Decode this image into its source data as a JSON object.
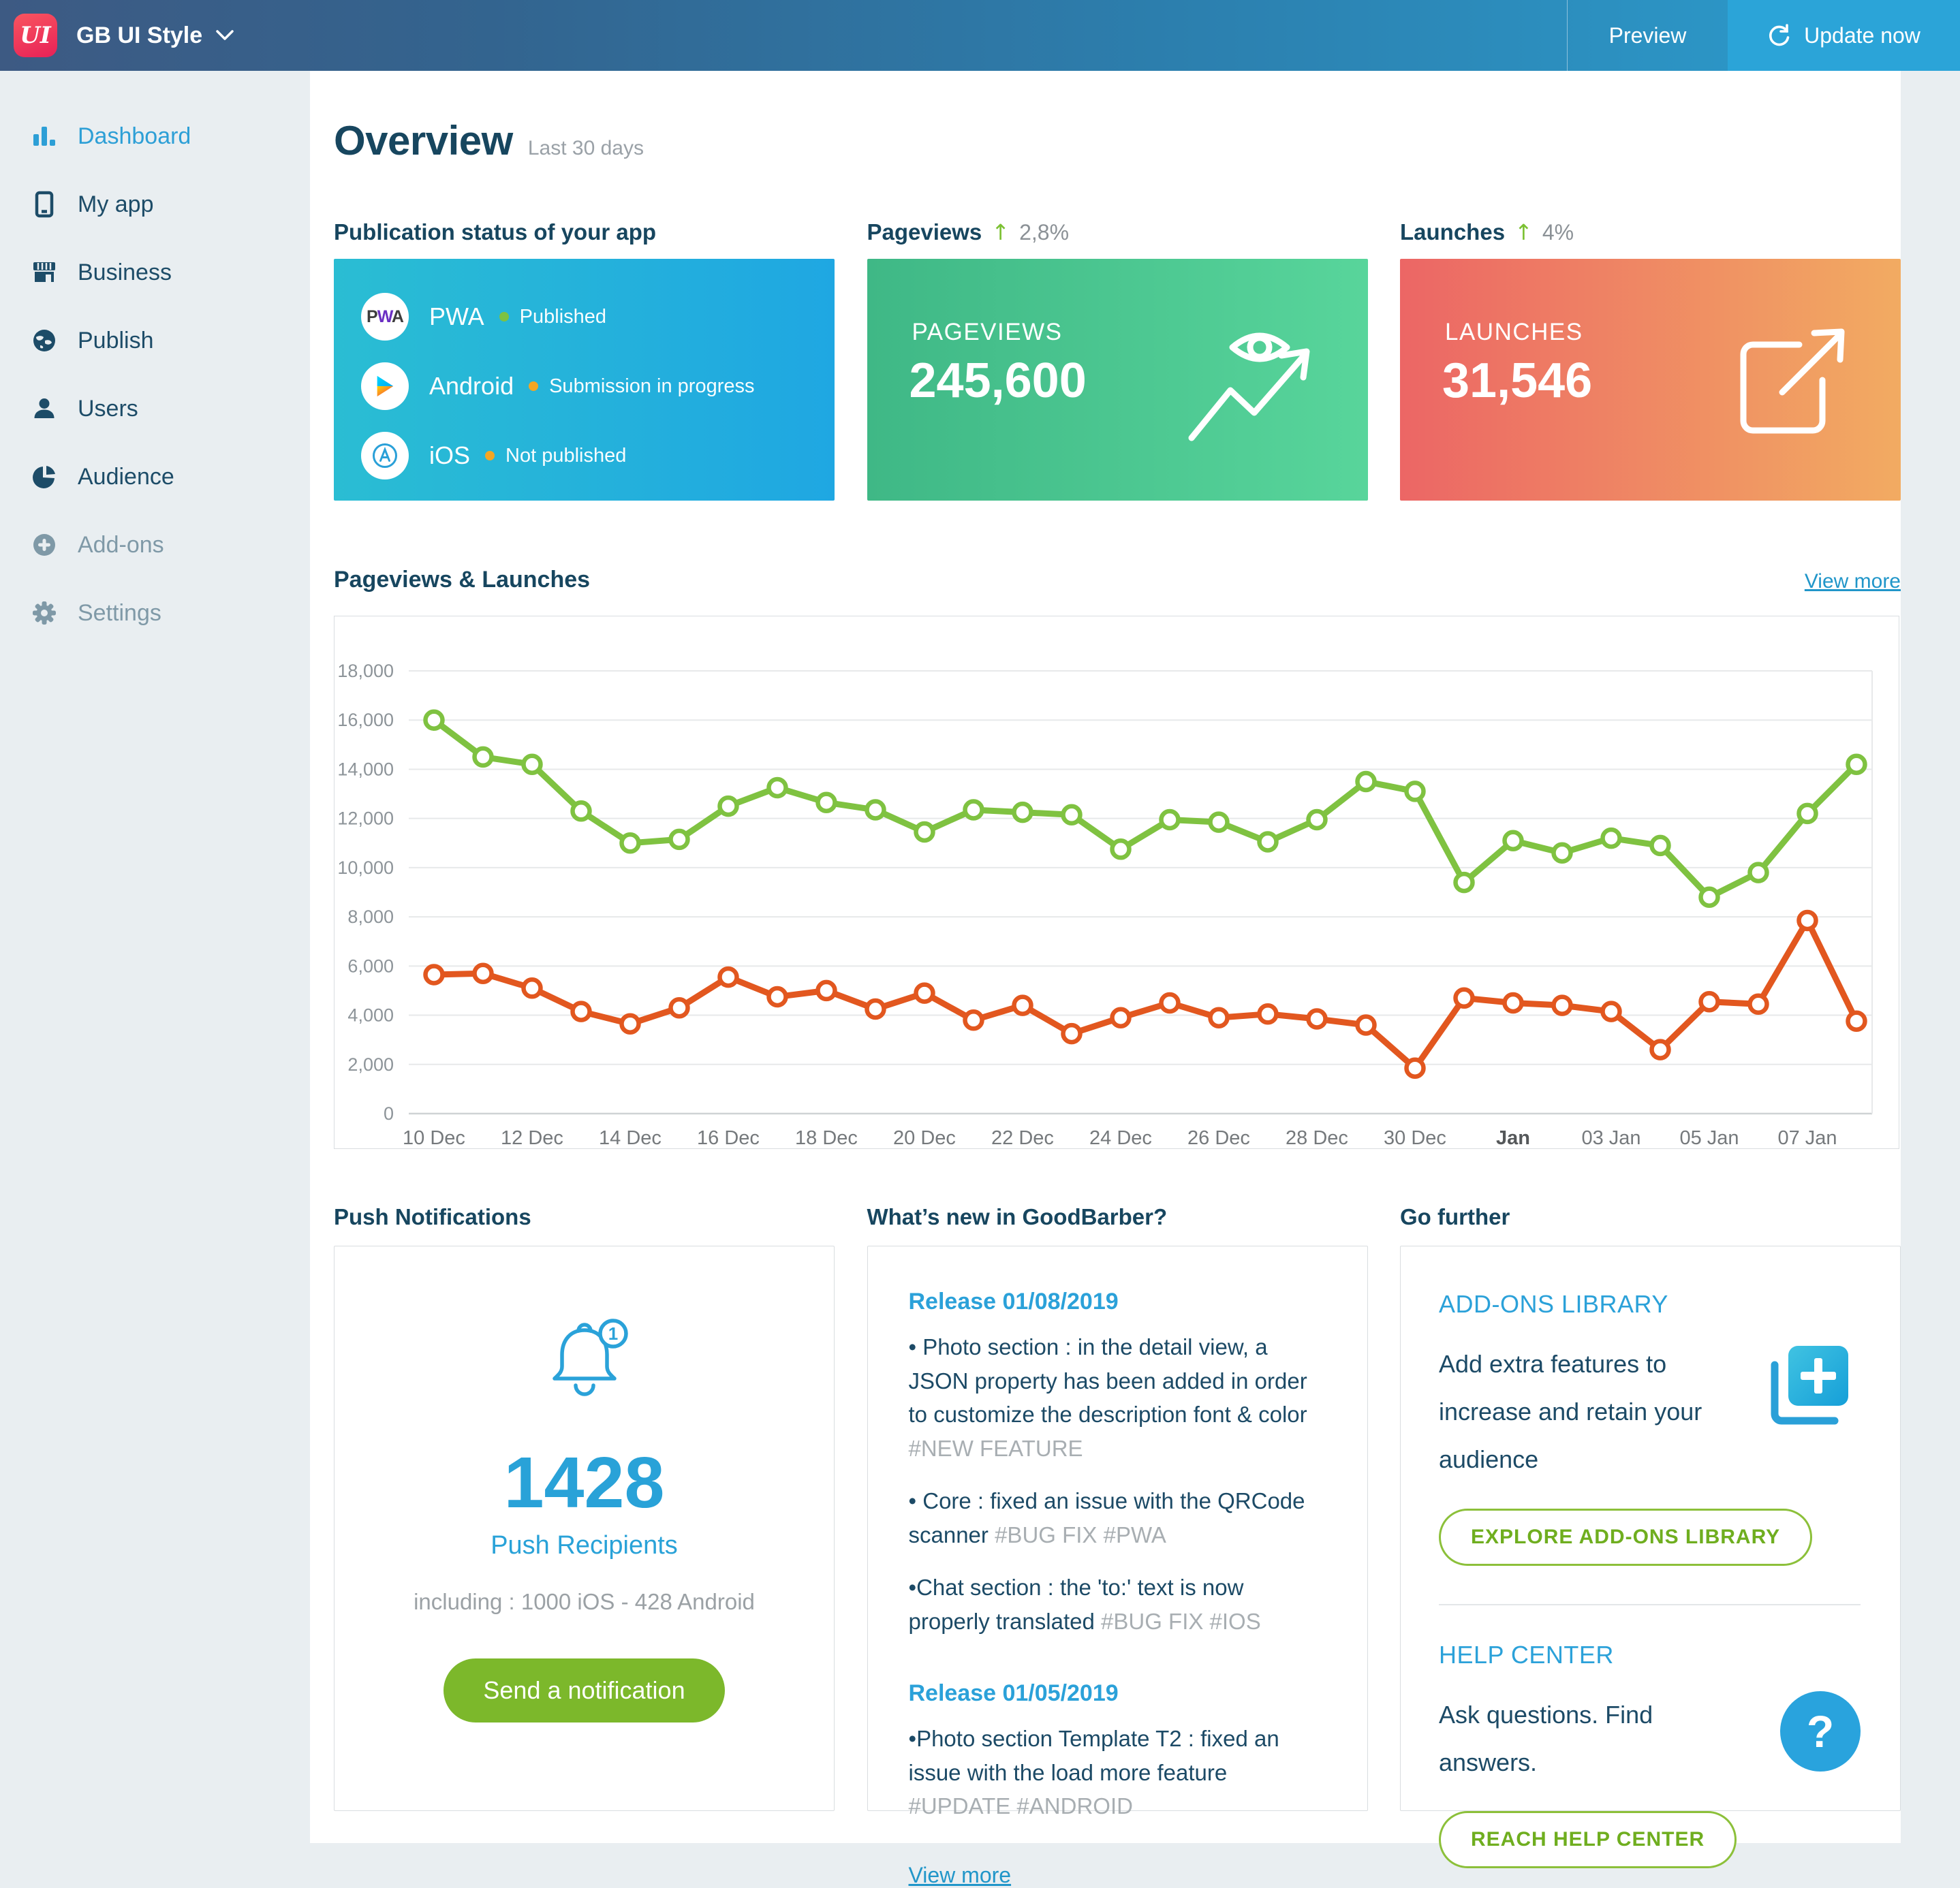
{
  "topbar": {
    "logo_text": "UI",
    "app_name": "GB UI Style",
    "preview": "Preview",
    "update": "Update now"
  },
  "sidebar": {
    "items": [
      {
        "label": "Dashboard",
        "icon": "bar-chart-icon",
        "state": "active"
      },
      {
        "label": "My app",
        "icon": "phone-icon",
        "state": "normal"
      },
      {
        "label": "Business",
        "icon": "storefront-icon",
        "state": "normal"
      },
      {
        "label": "Publish",
        "icon": "globe-icon",
        "state": "normal"
      },
      {
        "label": "Users",
        "icon": "user-icon",
        "state": "normal"
      },
      {
        "label": "Audience",
        "icon": "pie-chart-icon",
        "state": "normal"
      },
      {
        "label": "Add-ons",
        "icon": "plus-circle-icon",
        "state": "disabled"
      },
      {
        "label": "Settings",
        "icon": "gear-icon",
        "state": "disabled"
      }
    ]
  },
  "header": {
    "title": "Overview",
    "subtitle": "Last 30 days"
  },
  "publication": {
    "heading": "Publication status of your app",
    "rows": [
      {
        "platform": "PWA",
        "status": "Published",
        "dot_color": "#7dc242",
        "icon": "pwa-logo"
      },
      {
        "platform": "Android",
        "status": "Submission in progress",
        "dot_color": "#f5a623",
        "icon": "google-play-logo"
      },
      {
        "platform": "iOS",
        "status": "Not published",
        "dot_color": "#f5a623",
        "icon": "app-store-logo"
      }
    ]
  },
  "pageviews_card": {
    "heading": "Pageviews",
    "delta": "2,8%",
    "label": "PAGEVIEWS",
    "value": "245,600"
  },
  "launches_card": {
    "heading": "Launches",
    "delta": "4%",
    "label": "LAUNCHES",
    "value": "31,546"
  },
  "chart_section": {
    "heading": "Pageviews & Launches",
    "view_more": "View more"
  },
  "chart_data": {
    "type": "line",
    "title": "Pageviews & Launches",
    "xlabel": "",
    "ylabel": "",
    "ylim": [
      0,
      18000
    ],
    "grid": true,
    "legend_position": "none",
    "x": [
      "10 Dec",
      "11 Dec",
      "12 Dec",
      "13 Dec",
      "14 Dec",
      "15 Dec",
      "16 Dec",
      "17 Dec",
      "18 Dec",
      "19 Dec",
      "20 Dec",
      "21 Dec",
      "22 Dec",
      "23 Dec",
      "24 Dec",
      "25 Dec",
      "26 Dec",
      "27 Dec",
      "28 Dec",
      "29 Dec",
      "30 Dec",
      "31 Dec",
      "01 Jan",
      "02 Jan",
      "03 Jan",
      "04 Jan",
      "05 Jan",
      "06 Jan",
      "07 Jan",
      "08 Jan"
    ],
    "ticks": [
      [
        0,
        "10 Dec"
      ],
      [
        2,
        "12 Dec"
      ],
      [
        4,
        "14 Dec"
      ],
      [
        6,
        "16 Dec"
      ],
      [
        8,
        "18 Dec"
      ],
      [
        10,
        "20 Dec"
      ],
      [
        12,
        "22 Dec"
      ],
      [
        14,
        "24 Dec"
      ],
      [
        16,
        "26 Dec"
      ],
      [
        18,
        "28 Dec"
      ],
      [
        20,
        "30 Dec"
      ],
      [
        22,
        "Jan",
        true
      ],
      [
        24,
        "03 Jan"
      ],
      [
        26,
        "05 Jan"
      ],
      [
        28,
        "07 Jan"
      ]
    ],
    "yticks": [
      {
        "v": 0,
        "label": "0"
      },
      {
        "v": 2000,
        "label": "2,000"
      },
      {
        "v": 4000,
        "label": "4,000"
      },
      {
        "v": 6000,
        "label": "6,000"
      },
      {
        "v": 8000,
        "label": "8,000"
      },
      {
        "v": 10000,
        "label": "10,000"
      },
      {
        "v": 12000,
        "label": "12,000"
      },
      {
        "v": 14000,
        "label": "14,000"
      },
      {
        "v": 16000,
        "label": "16,000"
      },
      {
        "v": 18000,
        "label": "18,000"
      }
    ],
    "series": [
      {
        "name": "Pageviews",
        "color": "#7fc241",
        "values": [
          16000,
          14500,
          14200,
          12300,
          11000,
          11150,
          12500,
          13250,
          12650,
          12350,
          11450,
          12350,
          12250,
          12150,
          10750,
          11950,
          11850,
          11050,
          11950,
          13500,
          13100,
          9400,
          11100,
          10600,
          11200,
          10900,
          8800,
          9800,
          12200,
          14200
        ]
      },
      {
        "name": "Launches",
        "color": "#e2571f",
        "values": [
          5650,
          5700,
          5100,
          4150,
          3650,
          4300,
          5550,
          4750,
          5000,
          4250,
          4900,
          3800,
          4400,
          3250,
          3900,
          4500,
          3900,
          4050,
          3850,
          3600,
          1850,
          4700,
          4500,
          4400,
          4150,
          2600,
          4550,
          4450,
          7850,
          3760
        ]
      }
    ]
  },
  "push": {
    "heading": "Push Notifications",
    "badge": "1",
    "count": "1428",
    "label": "Push Recipients",
    "detail": "including : 1000 iOS - 428 Android",
    "button": "Send a notification"
  },
  "whats_new": {
    "heading": "What’s new in GoodBarber?",
    "releases": [
      {
        "title": "Release 01/08/2019",
        "items": [
          {
            "text": "Photo section : in the detail view, a JSON property has been added in order to customize the description font & color",
            "tags": "#NEW FEATURE"
          },
          {
            "text": "Core : fixed an issue with the QRCode scanner",
            "tags": "#BUG FIX #PWA"
          },
          {
            "text": "Chat section : the 'to:' text is now properly translated",
            "tags": "#BUG FIX #IOS"
          }
        ]
      },
      {
        "title": "Release 01/05/2019",
        "items": [
          {
            "text": "Photo section Template T2 : fixed an issue with the load more feature",
            "tags": "#UPDATE #ANDROID"
          }
        ]
      }
    ],
    "view_more": "View more"
  },
  "go_further": {
    "heading": "Go further",
    "sections": [
      {
        "title": "ADD-ONS LIBRARY",
        "text": "Add extra features to increase and retain your audience",
        "button": "EXPLORE ADD-ONS LIBRARY",
        "icon": "add-ons-library-icon"
      },
      {
        "title": "HELP CENTER",
        "text": "Ask questions. Find answers.",
        "button": "REACH HELP CENTER",
        "icon": "question-icon"
      }
    ]
  }
}
